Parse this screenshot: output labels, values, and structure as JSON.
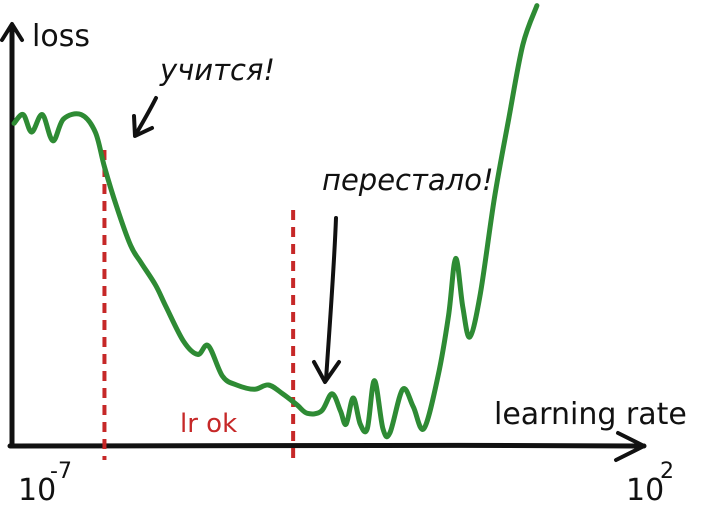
{
  "chart_data": {
    "type": "line",
    "title": "",
    "xlabel": "learning rate",
    "ylabel": "loss",
    "x_scale": "log",
    "x_tick_labels": [
      {
        "base": "10",
        "exponent": "-7"
      },
      {
        "base": "10",
        "exponent": "2"
      }
    ],
    "xlim": [
      -7,
      2
    ],
    "ylim": [
      0,
      100
    ],
    "grid": false,
    "series": [
      {
        "color": "#2e8b34",
        "points": [
          [
            -7.0,
            74
          ],
          [
            -6.87,
            76
          ],
          [
            -6.75,
            72
          ],
          [
            -6.6,
            76
          ],
          [
            -6.45,
            70
          ],
          [
            -6.3,
            75
          ],
          [
            -6.05,
            76
          ],
          [
            -5.85,
            72
          ],
          [
            -5.72,
            64
          ],
          [
            -5.55,
            55
          ],
          [
            -5.35,
            46
          ],
          [
            -5.2,
            42
          ],
          [
            -5.0,
            37
          ],
          [
            -4.85,
            32
          ],
          [
            -4.6,
            24
          ],
          [
            -4.4,
            21
          ],
          [
            -4.25,
            23
          ],
          [
            -4.05,
            16
          ],
          [
            -3.85,
            14
          ],
          [
            -3.6,
            13
          ],
          [
            -3.4,
            14
          ],
          [
            -3.2,
            12
          ],
          [
            -3.0,
            9.5
          ],
          [
            -2.85,
            7.5
          ],
          [
            -2.65,
            8
          ],
          [
            -2.5,
            12
          ],
          [
            -2.38,
            8
          ],
          [
            -2.3,
            5
          ],
          [
            -2.2,
            11
          ],
          [
            -2.1,
            5
          ],
          [
            -2.0,
            4
          ],
          [
            -1.9,
            15
          ],
          [
            -1.78,
            4
          ],
          [
            -1.68,
            3
          ],
          [
            -1.5,
            13
          ],
          [
            -1.35,
            9
          ],
          [
            -1.2,
            4
          ],
          [
            -1.0,
            16
          ],
          [
            -0.85,
            30
          ],
          [
            -0.75,
            43
          ],
          [
            -0.65,
            32
          ],
          [
            -0.55,
            25
          ],
          [
            -0.4,
            35
          ],
          [
            -0.2,
            57
          ],
          [
            0.0,
            75
          ],
          [
            0.2,
            92
          ],
          [
            0.4,
            101
          ]
        ]
      }
    ],
    "thresholds": [
      {
        "x": -5.72,
        "color": "#c62828",
        "style": "dashed"
      },
      {
        "x": -3.05,
        "color": "#c62828",
        "style": "dashed"
      }
    ],
    "annotations": [
      {
        "text": "учится!",
        "target_x": -5.9,
        "target_y": 72
      },
      {
        "text": "перестало!",
        "target_x": -3.15,
        "target_y": 15
      }
    ],
    "region_label": {
      "text": "lr ok",
      "color": "#c62828"
    }
  }
}
